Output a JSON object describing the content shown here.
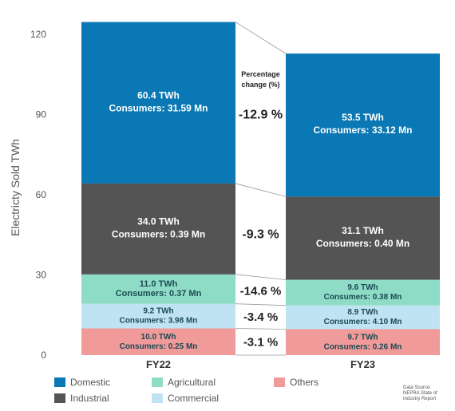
{
  "chart_data": {
    "type": "bar",
    "stacked": true,
    "categories": [
      "FY22",
      "FY23"
    ],
    "ylabel": "Electricty Sold TWh",
    "ylim": [
      0,
      125
    ],
    "yticks": [
      0,
      30,
      60,
      90,
      120
    ],
    "series": [
      {
        "name": "Others",
        "color": "#f19a9a",
        "values": [
          10.0,
          9.7
        ],
        "labels": [
          [
            "10.0 TWh",
            "Consumers: 0.25 Mn"
          ],
          [
            "9.7 TWh",
            "Consumers: 0.26 Mn"
          ]
        ],
        "text_color": "dark"
      },
      {
        "name": "Commercial",
        "color": "#bfe3f2",
        "values": [
          9.2,
          8.9
        ],
        "labels": [
          [
            "9.2 TWh",
            "Consumers: 3.98 Mn"
          ],
          [
            "8.9 TWh",
            "Consumers: 4.10 Mn"
          ]
        ],
        "text_color": "dark"
      },
      {
        "name": "Agricultural",
        "color": "#8fdcc6",
        "values": [
          11.0,
          9.6
        ],
        "labels": [
          [
            "11.0 TWh",
            "Consumers: 0.37 Mn"
          ],
          [
            "9.6 TWh",
            "Consumers: 0.38 Mn"
          ]
        ],
        "text_color": "dark"
      },
      {
        "name": "Industrial",
        "color": "#545454",
        "values": [
          34.0,
          31.1
        ],
        "labels": [
          [
            "34.0 TWh",
            "Consumers: 0.39 Mn"
          ],
          [
            "31.1 TWh",
            "Consumers: 0.40 Mn"
          ]
        ],
        "text_color": "light"
      },
      {
        "name": "Domestic",
        "color": "#0a78b4",
        "values": [
          60.4,
          53.5
        ],
        "labels": [
          [
            "60.4 TWh",
            "Consumers: 31.59 Mn"
          ],
          [
            "53.5 TWh",
            "Consumers: 33.12 Mn"
          ]
        ],
        "text_color": "light"
      }
    ],
    "change_title": [
      "Percentage",
      "change (%)"
    ],
    "changes": [
      "-3.1 %",
      "-3.4 %",
      "-14.6 %",
      "-9.3 %",
      "-12.9 %"
    ],
    "legend": {
      "position": "bottom",
      "rows": [
        [
          "Domestic",
          "Agricultural",
          "Others"
        ],
        [
          "Industrial",
          "Commercial"
        ]
      ]
    },
    "source_note": [
      "Data Source:",
      "NEPRA State of",
      "Industry Report"
    ]
  }
}
